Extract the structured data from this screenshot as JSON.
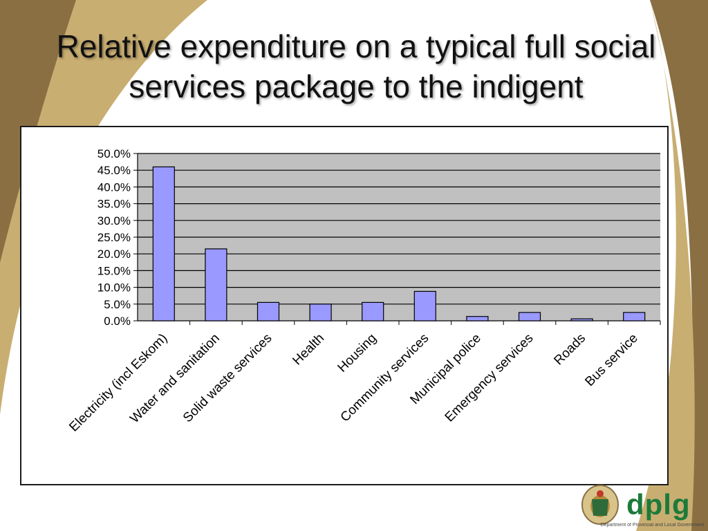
{
  "slide": {
    "title": "Relative expenditure on a typical full social services package to the indigent",
    "colors": {
      "background_gold": "#c9ae72",
      "background_brown": "#8a6f43",
      "plot_area": "#c0c0c0",
      "bar_fill": "#9999ff",
      "logo_green": "#1d7a3a"
    }
  },
  "logo": {
    "text": "dplg",
    "caption": "Department of Provincial and Local Government",
    "icon": "coat-of-arms-icon"
  },
  "chart_data": {
    "type": "bar",
    "title": "",
    "xlabel": "",
    "ylabel": "",
    "categories": [
      "Electricity (incl Eskom)",
      "Water and sanitation",
      "Solid waste services",
      "Health",
      "Housing",
      "Community services",
      "Municipal police",
      "Emergency services",
      "Roads",
      "Bus service"
    ],
    "values": [
      46.0,
      21.5,
      5.5,
      5.0,
      5.5,
      8.8,
      1.3,
      2.5,
      0.6,
      2.5
    ],
    "ylim": [
      0,
      50
    ],
    "yticks": [
      "0.0%",
      "5.0%",
      "10.0%",
      "15.0%",
      "20.0%",
      "25.0%",
      "30.0%",
      "35.0%",
      "40.0%",
      "45.0%",
      "50.0%"
    ],
    "grid": true,
    "legend": "none"
  }
}
